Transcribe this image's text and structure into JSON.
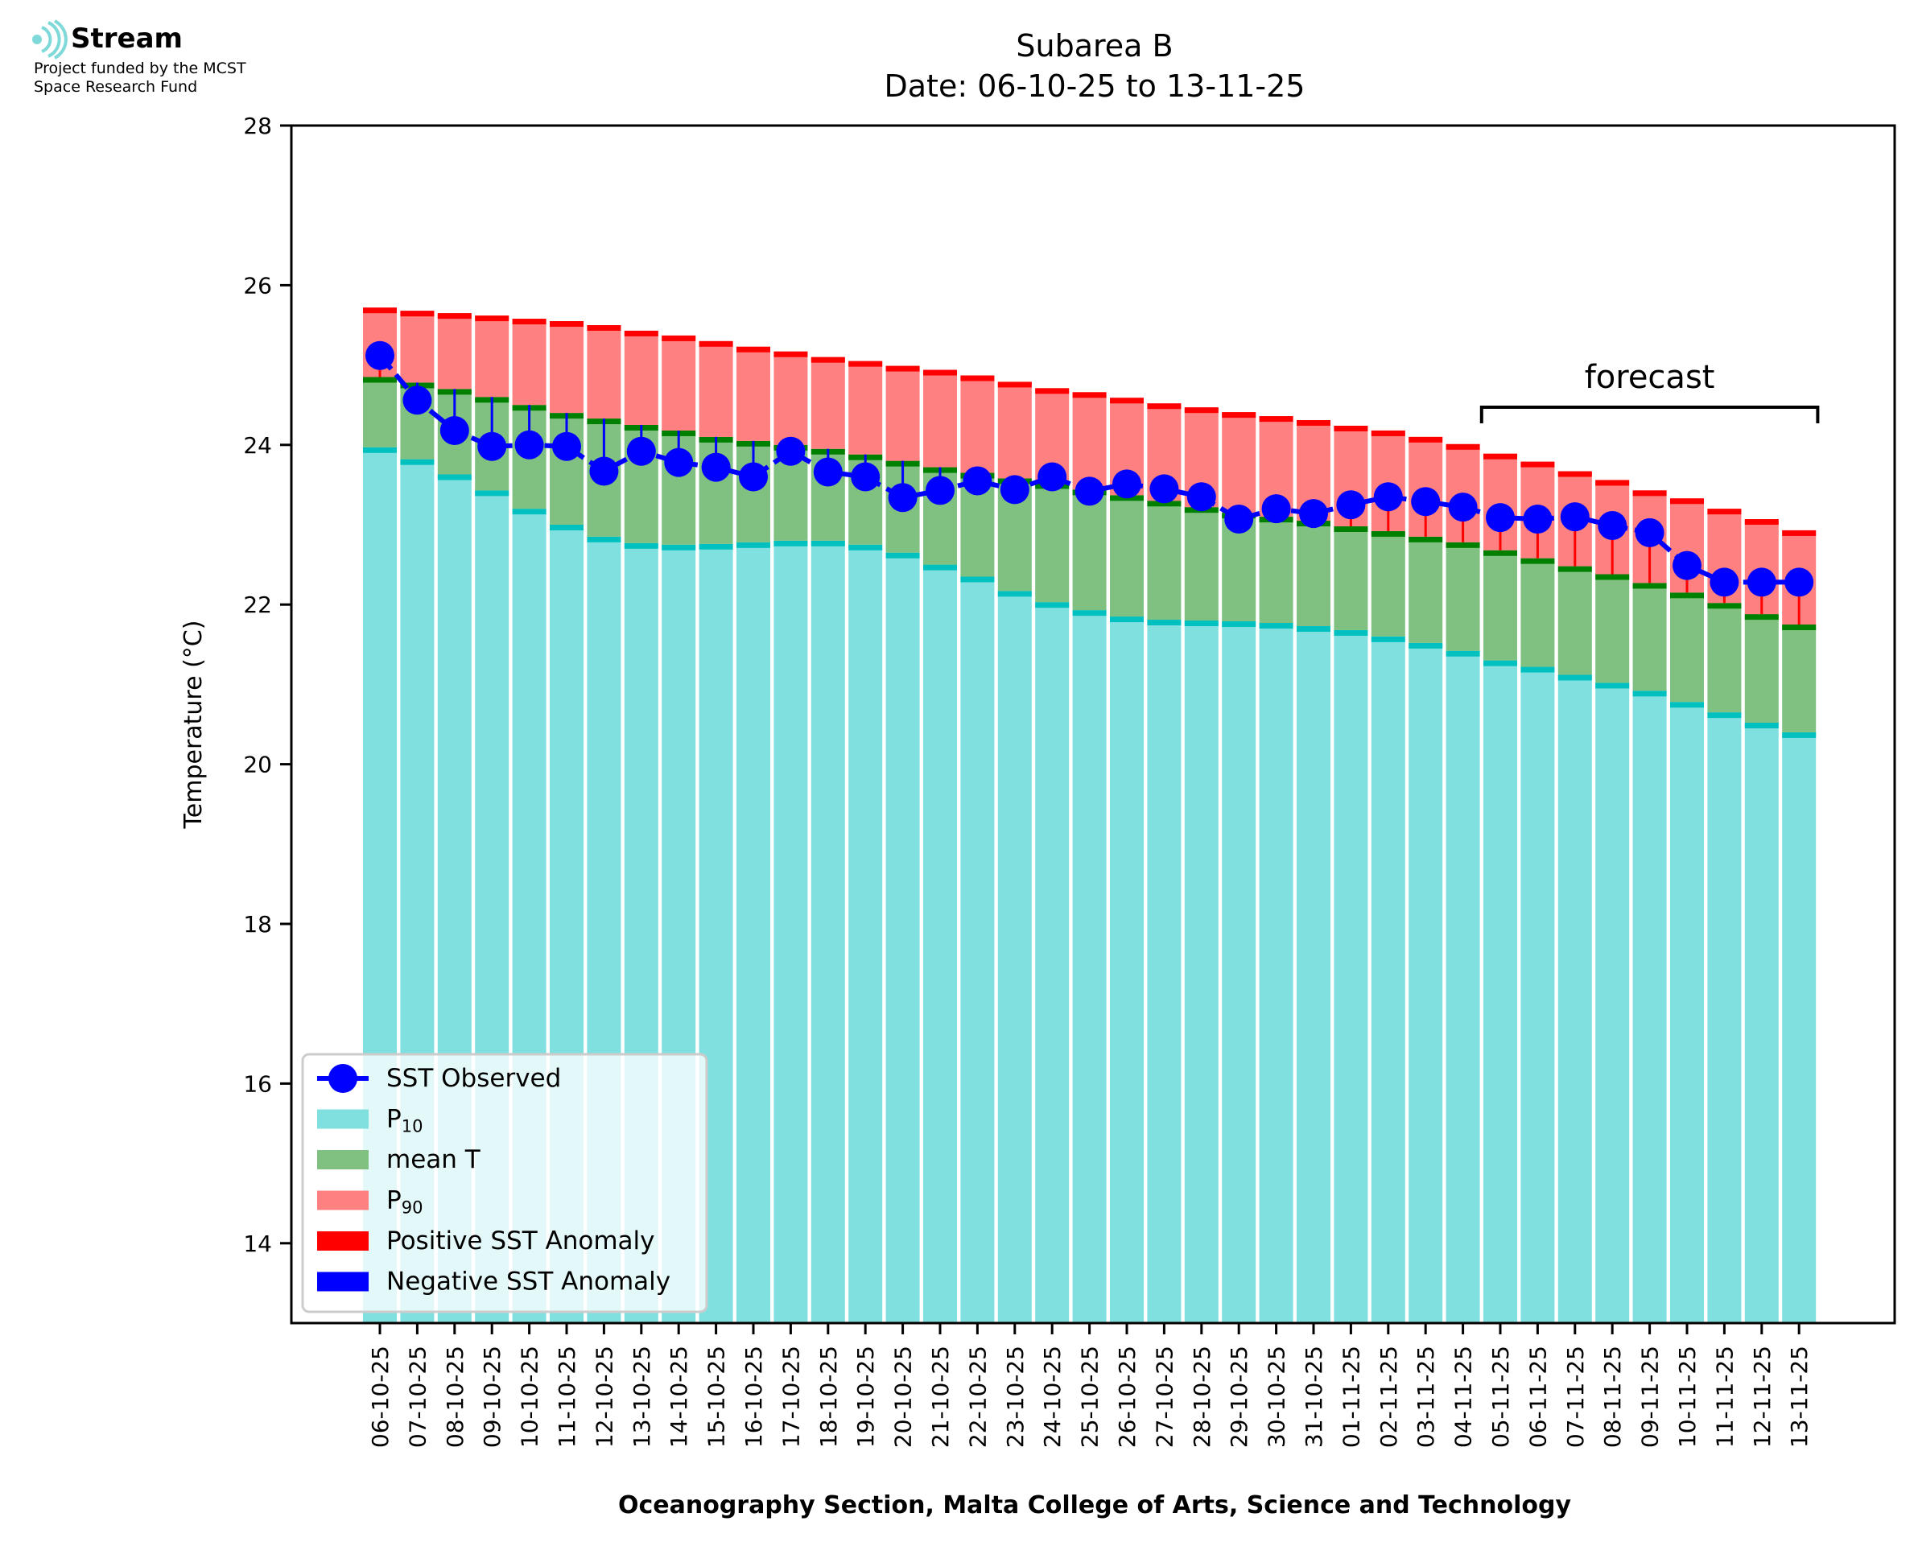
{
  "logo": {
    "name": "Stream",
    "line1": "Project funded by the MCST",
    "line2": "Space Research Fund"
  },
  "colors": {
    "p10": "#80dfdf",
    "p10_edge": "#00c0c0",
    "mean": "#80c080",
    "mean_edge": "#008000",
    "p90": "#ff8080",
    "p90_edge": "#ff0000",
    "positive_anomaly": "#ff0000",
    "negative_anomaly": "#0000ff",
    "observed": "#0000ff",
    "logo_icon": "#7fd9d9"
  },
  "chart_data": {
    "type": "bar",
    "title": "Subarea B",
    "subtitle": "Date: 06-10-25 to 13-11-25",
    "ylabel": "Temperature (°C)",
    "xlabel": "Oceanography Section, Malta College of Arts, Science and Technology",
    "ylim": [
      13,
      28
    ],
    "yticks": [
      14,
      16,
      18,
      20,
      22,
      24,
      26,
      28
    ],
    "grid": false,
    "legend_position": "lower-left",
    "categories": [
      "06-10-25",
      "07-10-25",
      "08-10-25",
      "09-10-25",
      "10-10-25",
      "11-10-25",
      "12-10-25",
      "13-10-25",
      "14-10-25",
      "15-10-25",
      "16-10-25",
      "17-10-25",
      "18-10-25",
      "19-10-25",
      "20-10-25",
      "21-10-25",
      "22-10-25",
      "23-10-25",
      "24-10-25",
      "25-10-25",
      "26-10-25",
      "27-10-25",
      "28-10-25",
      "29-10-25",
      "30-10-25",
      "31-10-25",
      "01-11-25",
      "02-11-25",
      "03-11-25",
      "04-11-25",
      "05-11-25",
      "06-11-25",
      "07-11-25",
      "08-11-25",
      "09-11-25",
      "10-11-25",
      "11-11-25",
      "12-11-25",
      "13-11-25"
    ],
    "series": [
      {
        "name": "P10",
        "kind": "bar",
        "values": [
          23.97,
          23.82,
          23.63,
          23.43,
          23.2,
          23.0,
          22.85,
          22.77,
          22.75,
          22.76,
          22.78,
          22.8,
          22.8,
          22.75,
          22.65,
          22.5,
          22.35,
          22.17,
          22.03,
          21.93,
          21.85,
          21.81,
          21.8,
          21.79,
          21.77,
          21.73,
          21.68,
          21.6,
          21.52,
          21.42,
          21.3,
          21.22,
          21.12,
          21.02,
          20.92,
          20.78,
          20.65,
          20.52,
          20.4
        ]
      },
      {
        "name": "mean T",
        "kind": "bar",
        "values": [
          24.85,
          24.78,
          24.7,
          24.6,
          24.5,
          24.4,
          24.33,
          24.25,
          24.18,
          24.1,
          24.05,
          24.0,
          23.95,
          23.88,
          23.8,
          23.72,
          23.65,
          23.58,
          23.52,
          23.44,
          23.37,
          23.3,
          23.22,
          23.15,
          23.1,
          23.05,
          22.98,
          22.92,
          22.85,
          22.78,
          22.68,
          22.58,
          22.48,
          22.38,
          22.27,
          22.15,
          22.02,
          21.88,
          21.75
        ]
      },
      {
        "name": "P90",
        "kind": "bar",
        "values": [
          25.72,
          25.68,
          25.65,
          25.62,
          25.58,
          25.55,
          25.5,
          25.43,
          25.37,
          25.3,
          25.23,
          25.17,
          25.1,
          25.05,
          24.99,
          24.94,
          24.87,
          24.79,
          24.71,
          24.66,
          24.59,
          24.52,
          24.47,
          24.41,
          24.36,
          24.31,
          24.24,
          24.18,
          24.1,
          24.01,
          23.89,
          23.79,
          23.67,
          23.56,
          23.43,
          23.33,
          23.2,
          23.07,
          22.93
        ]
      },
      {
        "name": "SST Observed",
        "kind": "line",
        "values": [
          25.12,
          24.56,
          24.18,
          23.98,
          24.0,
          23.98,
          23.67,
          23.92,
          23.78,
          23.72,
          23.6,
          23.92,
          23.66,
          23.6,
          23.34,
          23.43,
          23.55,
          23.44,
          23.6,
          23.42,
          23.51,
          23.45,
          23.35,
          23.07,
          23.2,
          23.14,
          23.25,
          23.35,
          23.29,
          23.22,
          23.09,
          23.07,
          23.1,
          22.99,
          22.9,
          22.49,
          22.28,
          22.28,
          22.28
        ]
      }
    ],
    "legend": [
      "SST Observed",
      "P10",
      "mean T",
      "P90",
      "Positive SST Anomaly",
      "Negative SST Anomaly"
    ],
    "annotation": {
      "text": "forecast",
      "start_category": "05-11-25",
      "end_category": "13-11-25"
    }
  }
}
